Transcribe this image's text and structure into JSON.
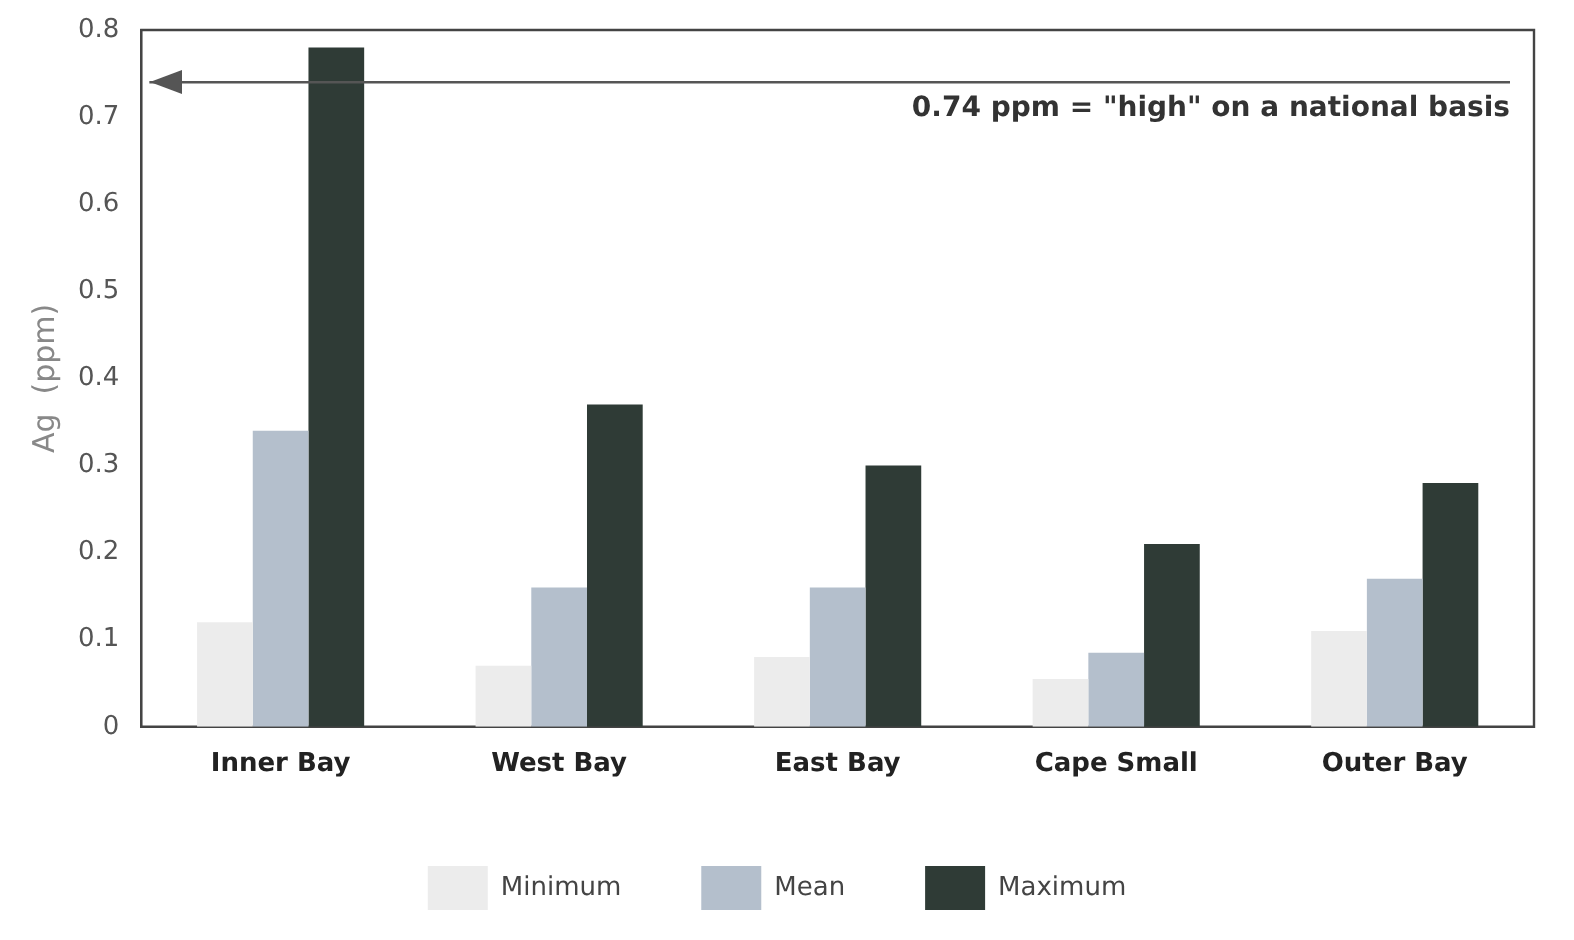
{
  "chart_data": {
    "type": "bar",
    "ylabel": "Ag  (ppm)",
    "categories": [
      "Inner Bay",
      "West Bay",
      "East Bay",
      "Cape Small",
      "Outer Bay"
    ],
    "series": [
      {
        "name": "Minimum",
        "color": "#ececec",
        "values": [
          0.12,
          0.07,
          0.08,
          0.055,
          0.11
        ]
      },
      {
        "name": "Mean",
        "color": "#b4bfcc",
        "values": [
          0.34,
          0.16,
          0.16,
          0.085,
          0.17
        ]
      },
      {
        "name": "Maximum",
        "color": "#2f3b36",
        "values": [
          0.78,
          0.37,
          0.3,
          0.21,
          0.28
        ]
      }
    ],
    "ylim": [
      0,
      0.8
    ],
    "yticks": [
      0,
      0.1,
      0.2,
      0.3,
      0.4,
      0.5,
      0.6,
      0.7,
      0.8
    ],
    "grid": false,
    "legend": "bottom",
    "ref_lines": [
      {
        "axis": "y",
        "value": 0.74,
        "label": "0.74 ppm = \"high\" on a national basis",
        "color": "#555555"
      }
    ]
  }
}
